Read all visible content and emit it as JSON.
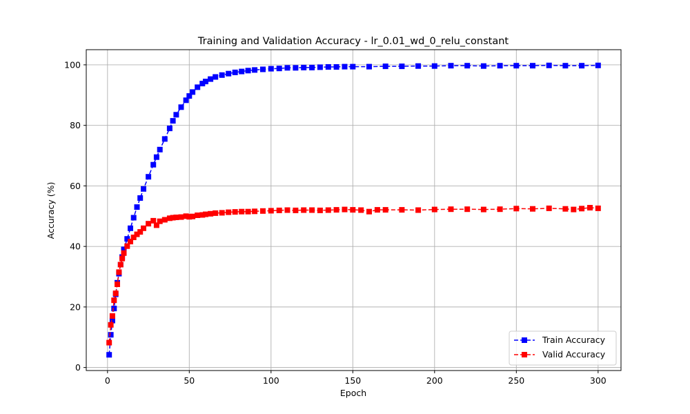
{
  "chart_data": {
    "type": "line",
    "title": "Training and Validation Accuracy - lr_0.01_wd_0_relu_constant",
    "xlabel": "Epoch",
    "ylabel": "Accuracy (%)",
    "xlim": [
      -13,
      314
    ],
    "ylim": [
      -1,
      105
    ],
    "xticks": [
      0,
      50,
      100,
      150,
      200,
      250,
      300
    ],
    "yticks": [
      0,
      20,
      40,
      60,
      80,
      100
    ],
    "grid": true,
    "legend_position": "lower-right",
    "series": [
      {
        "name": "Train Accuracy",
        "color": "#0000ff",
        "line_style": "dashed",
        "marker": "square",
        "x": [
          1,
          2,
          3,
          4,
          5,
          6,
          7,
          8,
          9,
          10,
          12,
          14,
          16,
          18,
          20,
          22,
          25,
          28,
          30,
          32,
          35,
          38,
          40,
          42,
          45,
          48,
          50,
          52,
          55,
          58,
          60,
          63,
          66,
          70,
          74,
          78,
          82,
          86,
          90,
          95,
          100,
          105,
          110,
          115,
          120,
          125,
          130,
          135,
          140,
          145,
          150,
          160,
          170,
          180,
          190,
          200,
          210,
          220,
          230,
          240,
          250,
          260,
          270,
          280,
          290,
          300
        ],
        "y": [
          4.2,
          10.8,
          15.5,
          19.5,
          24.2,
          28,
          31,
          34,
          36.5,
          39,
          42.5,
          46,
          49.5,
          53,
          56,
          59,
          63,
          67,
          69.5,
          72,
          75.5,
          79,
          81.5,
          83.5,
          86,
          88.3,
          89.7,
          91,
          92.6,
          93.8,
          94.5,
          95.3,
          96,
          96.6,
          97.1,
          97.5,
          97.8,
          98.1,
          98.3,
          98.5,
          98.7,
          98.8,
          99,
          99,
          99.1,
          99.1,
          99.2,
          99.3,
          99.3,
          99.4,
          99.4,
          99.4,
          99.5,
          99.5,
          99.6,
          99.6,
          99.7,
          99.7,
          99.6,
          99.7,
          99.7,
          99.7,
          99.8,
          99.7,
          99.7,
          99.8
        ]
      },
      {
        "name": "Valid Accuracy",
        "color": "#ff0000",
        "line_style": "dashed",
        "marker": "square",
        "x": [
          1,
          2,
          3,
          4,
          5,
          6,
          7,
          8,
          9,
          10,
          12,
          14,
          16,
          18,
          20,
          22,
          25,
          28,
          30,
          32,
          35,
          38,
          40,
          42,
          45,
          48,
          50,
          52,
          55,
          58,
          60,
          63,
          66,
          70,
          74,
          78,
          82,
          86,
          90,
          95,
          100,
          105,
          110,
          115,
          120,
          125,
          130,
          135,
          140,
          145,
          150,
          155,
          160,
          165,
          170,
          180,
          190,
          200,
          210,
          220,
          230,
          240,
          250,
          260,
          270,
          280,
          285,
          290,
          295,
          300
        ],
        "y": [
          8.2,
          14.1,
          17,
          22.2,
          24.5,
          27.5,
          31.5,
          34,
          36,
          37.8,
          40.1,
          41.6,
          43,
          44,
          44.8,
          46,
          47.5,
          48.5,
          47,
          48.3,
          48.8,
          49.3,
          49.5,
          49.6,
          49.7,
          50,
          49.8,
          49.9,
          50.3,
          50.4,
          50.6,
          50.8,
          51,
          51.1,
          51.3,
          51.4,
          51.5,
          51.5,
          51.6,
          51.7,
          51.8,
          51.9,
          52,
          51.9,
          52,
          52,
          51.9,
          52,
          52.1,
          52.2,
          52.1,
          52,
          51.5,
          52.1,
          52.1,
          52.1,
          52,
          52.2,
          52.3,
          52.3,
          52.2,
          52.3,
          52.5,
          52.4,
          52.6,
          52.4,
          52.2,
          52.5,
          52.8,
          52.6
        ]
      }
    ]
  }
}
